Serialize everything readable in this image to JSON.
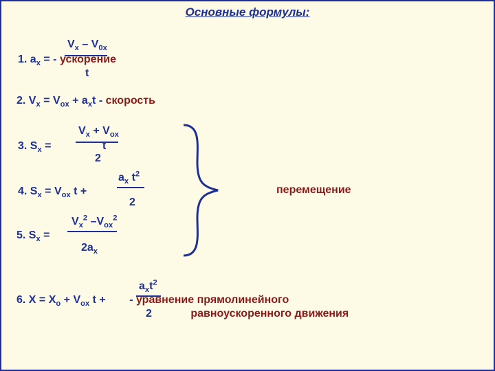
{
  "colors": {
    "background": "#fdfbe5",
    "text_main": "#1e2f97",
    "text_accent": "#8a1a1a"
  },
  "title": "Основные формулы:",
  "formula1": {
    "numerator": "V<sub>x</sub> – V<sub>0x</sub>",
    "lhs": "1.   a<sub>x</sub> = ",
    "denom": "t",
    "desc_dash": "  -  ",
    "desc": "ускорение"
  },
  "formula2": {
    "text": "2.  V<sub>x</sub> = V<sub>ox</sub> + a<sub>x</sub>t - ",
    "desc": "cкорость"
  },
  "formula3": {
    "numerator": "V<sub>x</sub> + V<sub>ox</sub>",
    "lhs": "3.    S<sub>x</sub> = ",
    "after": " t",
    "denom": "2"
  },
  "formula4": {
    "numerator": "a<sub>x</sub> t<sup>2</sup>",
    "lhs": "4.   S<sub>x</sub> = V<sub>ox</sub> t + ",
    "denom": "2"
  },
  "formula5": {
    "numerator": "V<sub>x</sub><sup>2</sup> –V<sub>ox</sub><sup>2</sup>",
    "lhs": "5.  S<sub>x</sub> =  ",
    "denom": "2a<sub>x</sub>"
  },
  "formula6": {
    "numerator": "a<sub>x</sub>t<sup>2</sup>",
    "lhs": "6.  X = X<sub>o</sub> + V<sub>ox</sub> t + ",
    "denom": "2",
    "desc_dash": "   -  ",
    "desc1": "уравнение прямолинейного",
    "desc2": "равноускоренного движения"
  },
  "group_label": "перемещение"
}
